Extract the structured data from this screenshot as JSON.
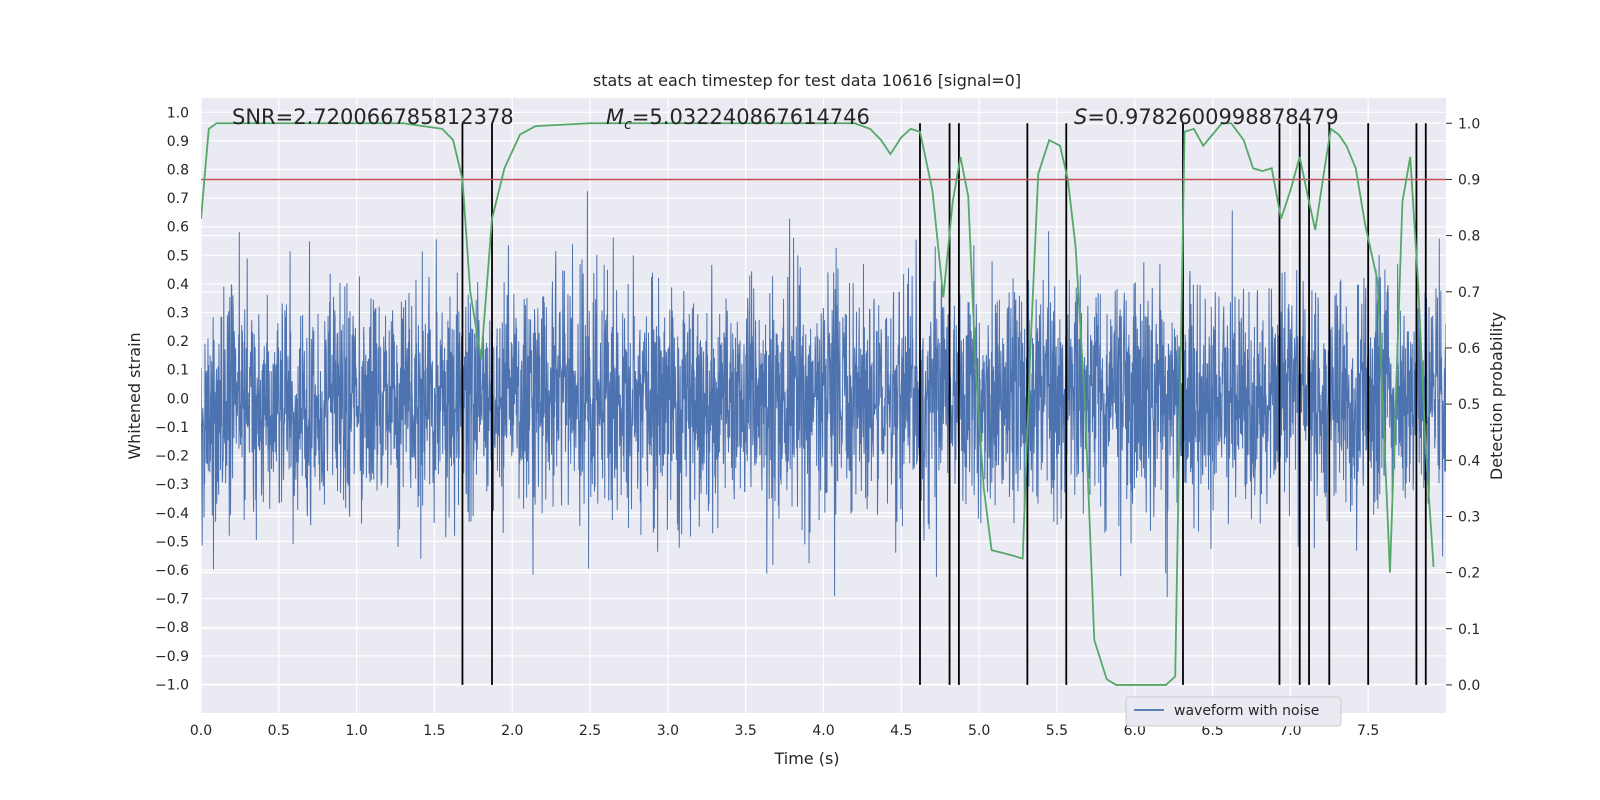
{
  "chart_data": {
    "type": "line",
    "title": "stats at each timestep for test data 10616 [signal=0]",
    "xlabel": "Time (s)",
    "ylabel_left": "Whitened strain",
    "ylabel_right": "Detection probability",
    "xlim": [
      0.0,
      8.0
    ],
    "ylim_left": [
      -1.1,
      1.05
    ],
    "ylim_right": [
      -0.05,
      1.045
    ],
    "x_ticks": [
      "0.0",
      "0.5",
      "1.0",
      "1.5",
      "2.0",
      "2.5",
      "3.0",
      "3.5",
      "4.0",
      "4.5",
      "5.0",
      "5.5",
      "6.0",
      "6.5",
      "7.0",
      "7.5"
    ],
    "x_tick_values": [
      0.0,
      0.5,
      1.0,
      1.5,
      2.0,
      2.5,
      3.0,
      3.5,
      4.0,
      4.5,
      5.0,
      5.5,
      6.0,
      6.5,
      7.0,
      7.5
    ],
    "y_left_ticks": [
      "1.0",
      "0.9",
      "0.8",
      "0.7",
      "0.6",
      "0.5",
      "0.4",
      "0.3",
      "0.2",
      "0.1",
      "0.0",
      "−0.1",
      "−0.2",
      "−0.3",
      "−0.4",
      "−0.5",
      "−0.6",
      "−0.7",
      "−0.8",
      "−0.9",
      "−1.0"
    ],
    "y_left_tick_values": [
      1.0,
      0.9,
      0.8,
      0.7,
      0.6,
      0.5,
      0.4,
      0.3,
      0.2,
      0.1,
      0.0,
      -0.1,
      -0.2,
      -0.3,
      -0.4,
      -0.5,
      -0.6,
      -0.7,
      -0.8,
      -0.9,
      -1.0
    ],
    "y_right_ticks": [
      "1.0",
      "0.9",
      "0.8",
      "0.7",
      "0.6",
      "0.5",
      "0.4",
      "0.3",
      "0.2",
      "0.1",
      "0.0"
    ],
    "y_right_tick_values": [
      1.0,
      0.9,
      0.8,
      0.7,
      0.6,
      0.5,
      0.4,
      0.3,
      0.2,
      0.1,
      0.0
    ],
    "grid": true,
    "legend": {
      "placement": "lower-right",
      "entries": [
        "waveform with noise"
      ]
    },
    "annotations": {
      "snr": {
        "prefix": "SNR",
        "value": "=2.720066785812378"
      },
      "mc": {
        "prefix": "M",
        "subscript": "c",
        "value": "=5.032240867614746"
      },
      "s": {
        "prefix": "S",
        "value": "=0.9782600998878479"
      }
    },
    "threshold_right": 0.9,
    "detection_probability": {
      "x": [
        0.0,
        0.05,
        0.1,
        0.2,
        0.5,
        1.0,
        1.3,
        1.55,
        1.62,
        1.68,
        1.73,
        1.8,
        1.87,
        1.95,
        2.05,
        2.15,
        2.5,
        3.0,
        3.5,
        4.0,
        4.2,
        4.3,
        4.37,
        4.43,
        4.5,
        4.56,
        4.62,
        4.7,
        4.77,
        4.83,
        4.88,
        4.93,
        4.98,
        5.03,
        5.08,
        5.15,
        5.22,
        5.28,
        5.33,
        5.38,
        5.45,
        5.52,
        5.57,
        5.62,
        5.68,
        5.74,
        5.82,
        5.88,
        6.0,
        6.1,
        6.2,
        6.26,
        6.32,
        6.38,
        6.44,
        6.5,
        6.56,
        6.62,
        6.7,
        6.76,
        6.82,
        6.88,
        6.94,
        7.0,
        7.06,
        7.12,
        7.16,
        7.22,
        7.26,
        7.31,
        7.36,
        7.42,
        7.48,
        7.56,
        7.64,
        7.72,
        7.77,
        7.82,
        7.87,
        7.92
      ],
      "y": [
        0.83,
        0.99,
        1.0,
        1.0,
        1.0,
        1.0,
        1.0,
        0.99,
        0.97,
        0.9,
        0.7,
        0.58,
        0.83,
        0.92,
        0.98,
        0.995,
        1.0,
        1.0,
        1.0,
        1.0,
        1.0,
        0.99,
        0.97,
        0.945,
        0.975,
        0.99,
        0.985,
        0.88,
        0.69,
        0.86,
        0.94,
        0.87,
        0.55,
        0.35,
        0.24,
        0.235,
        0.23,
        0.225,
        0.6,
        0.91,
        0.97,
        0.96,
        0.9,
        0.78,
        0.5,
        0.08,
        0.01,
        0.0,
        0.0,
        0.0,
        0.0,
        0.015,
        0.985,
        0.99,
        0.96,
        0.98,
        1.0,
        1.0,
        0.97,
        0.92,
        0.915,
        0.92,
        0.83,
        0.88,
        0.94,
        0.86,
        0.81,
        0.92,
        0.99,
        0.98,
        0.96,
        0.92,
        0.82,
        0.72,
        0.2,
        0.86,
        0.94,
        0.72,
        0.42,
        0.21
      ]
    },
    "vertical_lines_x": [
      1.68,
      1.87,
      4.62,
      4.81,
      4.87,
      5.31,
      5.56,
      6.31,
      6.93,
      7.06,
      7.12,
      7.25,
      7.5,
      7.81,
      7.87
    ],
    "series": [
      {
        "name": "waveform with noise",
        "summary": "whitened strain noise, dense, amplitude roughly ±0.5 with peaks up to ±1.0"
      },
      {
        "summary": "detection probability over time (right axis)"
      }
    ],
    "colors": {
      "waveform": "#4c72b0",
      "probability": "#55a868",
      "threshold": "#c44e52",
      "vlines": "#000000",
      "plot_bg": "#eaeaf2",
      "grid": "#ffffff"
    }
  }
}
